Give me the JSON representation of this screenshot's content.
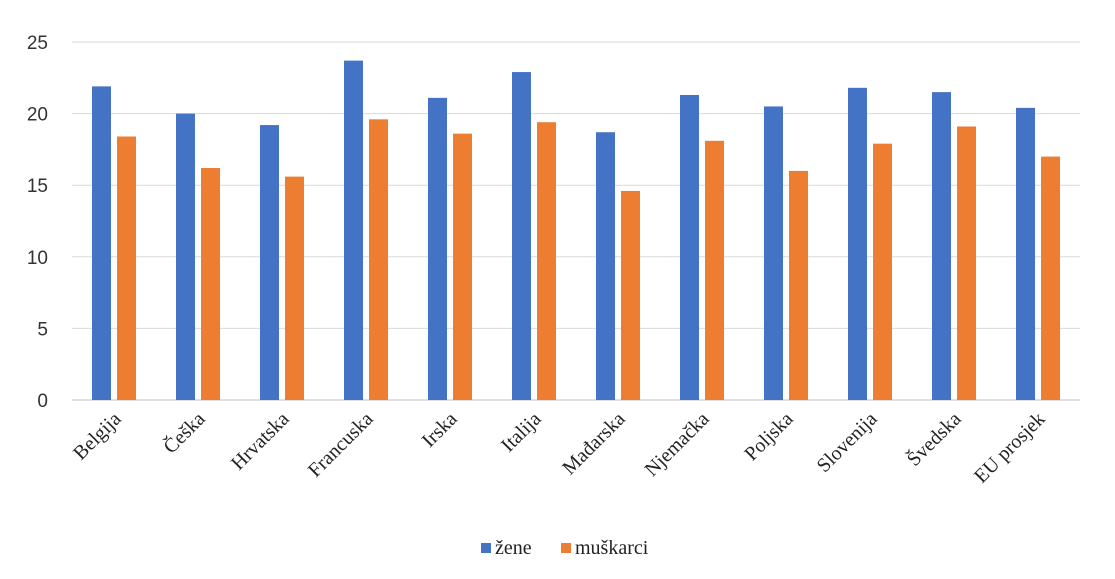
{
  "chart_data": {
    "type": "bar",
    "categories": [
      "Belgija",
      "Češka",
      "Hrvatska",
      "Francuska",
      "Irska",
      "Italija",
      "Mađarska",
      "Njemačka",
      "Poljska",
      "Slovenija",
      "Švedska",
      "EU prosjek"
    ],
    "series": [
      {
        "name": "žene",
        "color": "#4472C4",
        "values": [
          21.9,
          20.0,
          19.2,
          23.7,
          21.1,
          22.9,
          18.7,
          21.3,
          20.5,
          21.8,
          21.5,
          20.4
        ]
      },
      {
        "name": "muškarci",
        "color": "#ED7D31",
        "values": [
          18.4,
          16.2,
          15.6,
          19.6,
          18.6,
          19.4,
          14.6,
          18.1,
          16.0,
          17.9,
          19.1,
          17.0
        ]
      }
    ],
    "title": "",
    "xlabel": "",
    "ylabel": "",
    "ylim": [
      0,
      25
    ],
    "yticks": [
      "0",
      "5",
      "10",
      "15",
      "20",
      "25"
    ],
    "grid": true,
    "legend_position": "bottom"
  }
}
